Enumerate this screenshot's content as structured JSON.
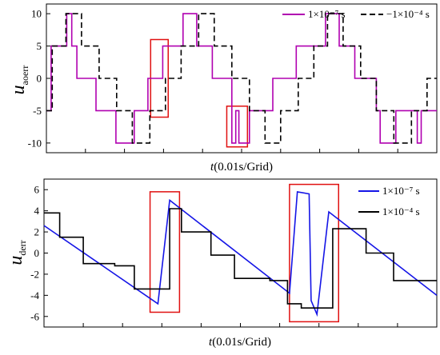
{
  "chart_data": [
    {
      "type": "line",
      "ylabel": "u",
      "ylabel_sub": "aoerr",
      "xlabel_var": "t",
      "xlabel_unit": "(0.01s/Grid)",
      "ylim": [
        -11.5,
        11.5
      ],
      "xlim": [
        0,
        10
      ],
      "yticks": [
        -10,
        -5,
        0,
        5,
        10
      ],
      "ytick_labels": [
        "-10",
        "-5",
        "0",
        "5",
        "10"
      ],
      "xtick_count": 11,
      "grid": false,
      "legend_position": "top-right",
      "series": [
        {
          "name": "1×10⁻⁷ s",
          "color": "#b000b0",
          "x": [
            0,
            0.12,
            0.12,
            0.52,
            0.52,
            0.65,
            0.65,
            0.78,
            0.78,
            1.27,
            1.27,
            1.78,
            1.78,
            2.25,
            2.25,
            2.6,
            2.6,
            2.98,
            2.98,
            3.5,
            3.5,
            3.85,
            3.85,
            4.25,
            4.25,
            4.75,
            4.75,
            4.85,
            4.85,
            4.93,
            4.93,
            5.2,
            5.2,
            5.8,
            5.8,
            6.4,
            6.4,
            7.15,
            7.15,
            7.5,
            7.5,
            7.9,
            7.9,
            8.45,
            8.45,
            8.55,
            8.55,
            8.95,
            8.95,
            9.5,
            9.5,
            9.6,
            9.6,
            10
          ],
          "y": [
            -5,
            -5,
            5,
            5,
            10,
            10,
            5,
            5,
            0,
            0,
            -5,
            -5,
            -10,
            -10,
            -5,
            -5,
            0,
            0,
            5,
            5,
            10,
            10,
            5,
            5,
            0,
            0,
            -10,
            -10,
            -5,
            -5,
            -10,
            -10,
            -5,
            -5,
            0,
            0,
            5,
            5,
            10,
            10,
            5,
            5,
            0,
            0,
            -5,
            -5,
            -10,
            -10,
            -5,
            -5,
            -10,
            -10,
            -5,
            -5
          ]
        },
        {
          "name": "−1×10⁻⁴ s",
          "color": "#000000",
          "x": [
            0,
            0.15,
            0.15,
            0.5,
            0.5,
            0.9,
            0.9,
            1.35,
            1.35,
            1.8,
            1.8,
            2.2,
            2.2,
            2.65,
            2.65,
            3.05,
            3.05,
            3.45,
            3.45,
            3.9,
            3.9,
            4.3,
            4.3,
            4.75,
            4.75,
            5.2,
            5.2,
            5.6,
            5.6,
            6.0,
            6.0,
            6.45,
            6.45,
            6.85,
            6.85,
            7.2,
            7.2,
            7.6,
            7.6,
            8.05,
            8.05,
            8.45,
            8.45,
            8.9,
            8.9,
            9.35,
            9.35,
            9.75,
            9.75,
            10
          ],
          "y": [
            -5,
            -5,
            5,
            5,
            10,
            10,
            5,
            5,
            0,
            0,
            -5,
            -5,
            -10,
            -10,
            -5,
            -5,
            0,
            0,
            5,
            5,
            10,
            10,
            5,
            5,
            0,
            0,
            -5,
            -5,
            -10,
            -10,
            -5,
            -5,
            0,
            0,
            5,
            5,
            10,
            10,
            5,
            5,
            0,
            0,
            -5,
            -5,
            -10,
            -10,
            -5,
            -5,
            0,
            0
          ]
        }
      ],
      "highlight_boxes": [
        {
          "x": [
            2.67,
            3.12
          ],
          "y": [
            -6,
            6
          ]
        },
        {
          "x": [
            4.62,
            5.15
          ],
          "y": [
            -10.6,
            -4.3
          ]
        }
      ]
    },
    {
      "type": "line",
      "ylabel": "u",
      "ylabel_sub": "derr",
      "xlabel_var": "t",
      "xlabel_unit": "(0.01s/Grid)",
      "ylim": [
        -7,
        7
      ],
      "xlim": [
        0,
        10
      ],
      "yticks": [
        -6,
        -4,
        -2,
        0,
        2,
        4,
        6
      ],
      "ytick_labels": [
        "-6",
        "-4",
        "-2",
        "0",
        "2",
        "4",
        "6"
      ],
      "xtick_count": 11,
      "grid": false,
      "legend_position": "top-right",
      "series": [
        {
          "name": "1×10⁻⁷ s",
          "color": "#1515e6",
          "x": [
            0,
            2.9,
            3.2,
            6.25,
            6.45,
            6.75,
            6.8,
            6.95,
            7.25,
            10
          ],
          "y": [
            2.6,
            -4.8,
            5.0,
            -3.8,
            5.8,
            5.6,
            -4.5,
            -5.8,
            3.9,
            -4.0
          ]
        },
        {
          "name": "1×10⁻⁴ s",
          "color": "#000000",
          "x": [
            0,
            0.4,
            0.4,
            1.0,
            1.0,
            1.8,
            1.8,
            2.3,
            2.3,
            3.2,
            3.2,
            3.5,
            3.5,
            4.25,
            4.25,
            4.85,
            4.85,
            5.75,
            5.75,
            6.2,
            6.2,
            6.55,
            6.55,
            7.35,
            7.35,
            8.2,
            8.2,
            8.9,
            8.9,
            9.7,
            9.7,
            10
          ],
          "y": [
            3.8,
            3.8,
            1.5,
            1.5,
            -1.0,
            -1.0,
            -1.2,
            -1.2,
            -3.4,
            -3.4,
            4.2,
            4.2,
            2.0,
            2.0,
            -0.2,
            -0.2,
            -2.4,
            -2.4,
            -2.6,
            -2.6,
            -4.8,
            -4.8,
            -5.2,
            -5.2,
            2.3,
            2.3,
            0.0,
            0.0,
            -2.6,
            -2.6,
            -2.6,
            -2.6
          ]
        }
      ],
      "highlight_boxes": [
        {
          "x": [
            2.7,
            3.45
          ],
          "y": [
            -5.6,
            5.8
          ]
        },
        {
          "x": [
            6.25,
            7.5
          ],
          "y": [
            -6.5,
            6.5
          ]
        }
      ]
    }
  ]
}
